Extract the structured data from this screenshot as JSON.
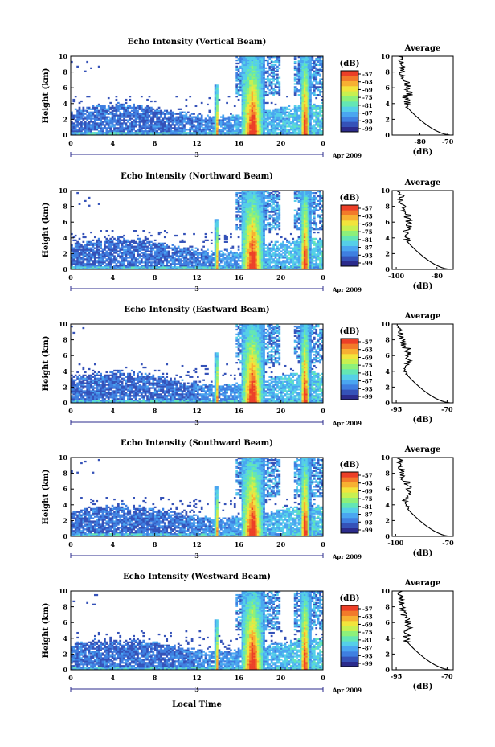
{
  "panels": [
    {
      "title": "Echo Intensity (Vertical Beam)",
      "avg_title": "Average",
      "avg_ticks": [
        "-80",
        "-70"
      ],
      "avg_range": [
        -90,
        -68
      ]
    },
    {
      "title": "Echo Intensity (Northward Beam)",
      "avg_title": "Average",
      "avg_ticks": [
        "-100",
        "-80"
      ],
      "avg_range": [
        -102,
        -72
      ]
    },
    {
      "title": "Echo Intensity (Eastward Beam)",
      "avg_title": "Average",
      "avg_ticks": [
        "-95",
        "-70"
      ],
      "avg_range": [
        -97,
        -67
      ]
    },
    {
      "title": "Echo Intensity (Southward Beam)",
      "avg_title": "Average",
      "avg_ticks": [
        "-100",
        "-70"
      ],
      "avg_range": [
        -102,
        -67
      ]
    },
    {
      "title": "Echo Intensity (Westward Beam)",
      "avg_title": "Average",
      "avg_ticks": [
        "-95",
        "-70"
      ],
      "avg_range": [
        -97,
        -67
      ]
    }
  ],
  "ylabel": "Height (km)",
  "y_ticks": [
    "0",
    "2",
    "4",
    "6",
    "8",
    "10"
  ],
  "x_ticks": [
    "0",
    "4",
    "8",
    "12",
    "16",
    "20",
    "0"
  ],
  "day_label": "3",
  "month_label": "Apr 2009",
  "xlabel": "Local Time",
  "avg_xlabel": "(dB)",
  "colorbar": {
    "unit": "(dB)",
    "labels": [
      "-57",
      "-63",
      "-69",
      "-75",
      "-81",
      "-87",
      "-93",
      "-99"
    ],
    "colors": [
      "#2b2b8c",
      "#3552b8",
      "#3f7fe0",
      "#4aa6f0",
      "#55cfe8",
      "#64e6b4",
      "#8df07a",
      "#c8f050",
      "#f2e43c",
      "#f7b032",
      "#f27a2a",
      "#ec3f27"
    ]
  },
  "chart_data": {
    "type": "heatmap",
    "x_range_hours": [
      0,
      24
    ],
    "y_range_km": [
      0,
      10
    ],
    "color_range_db": [
      -99,
      -57
    ],
    "series_features": [
      {
        "name": "rain event 1",
        "start_h": 16.3,
        "end_h": 18.5,
        "peak_h": 17.3
      },
      {
        "name": "rain event 2",
        "start_h": 21.8,
        "end_h": 22.8,
        "peak_h": 22.3
      },
      {
        "name": "precip spike",
        "start_h": 13.7,
        "end_h": 14.1,
        "peak_h": 13.9
      }
    ]
  }
}
